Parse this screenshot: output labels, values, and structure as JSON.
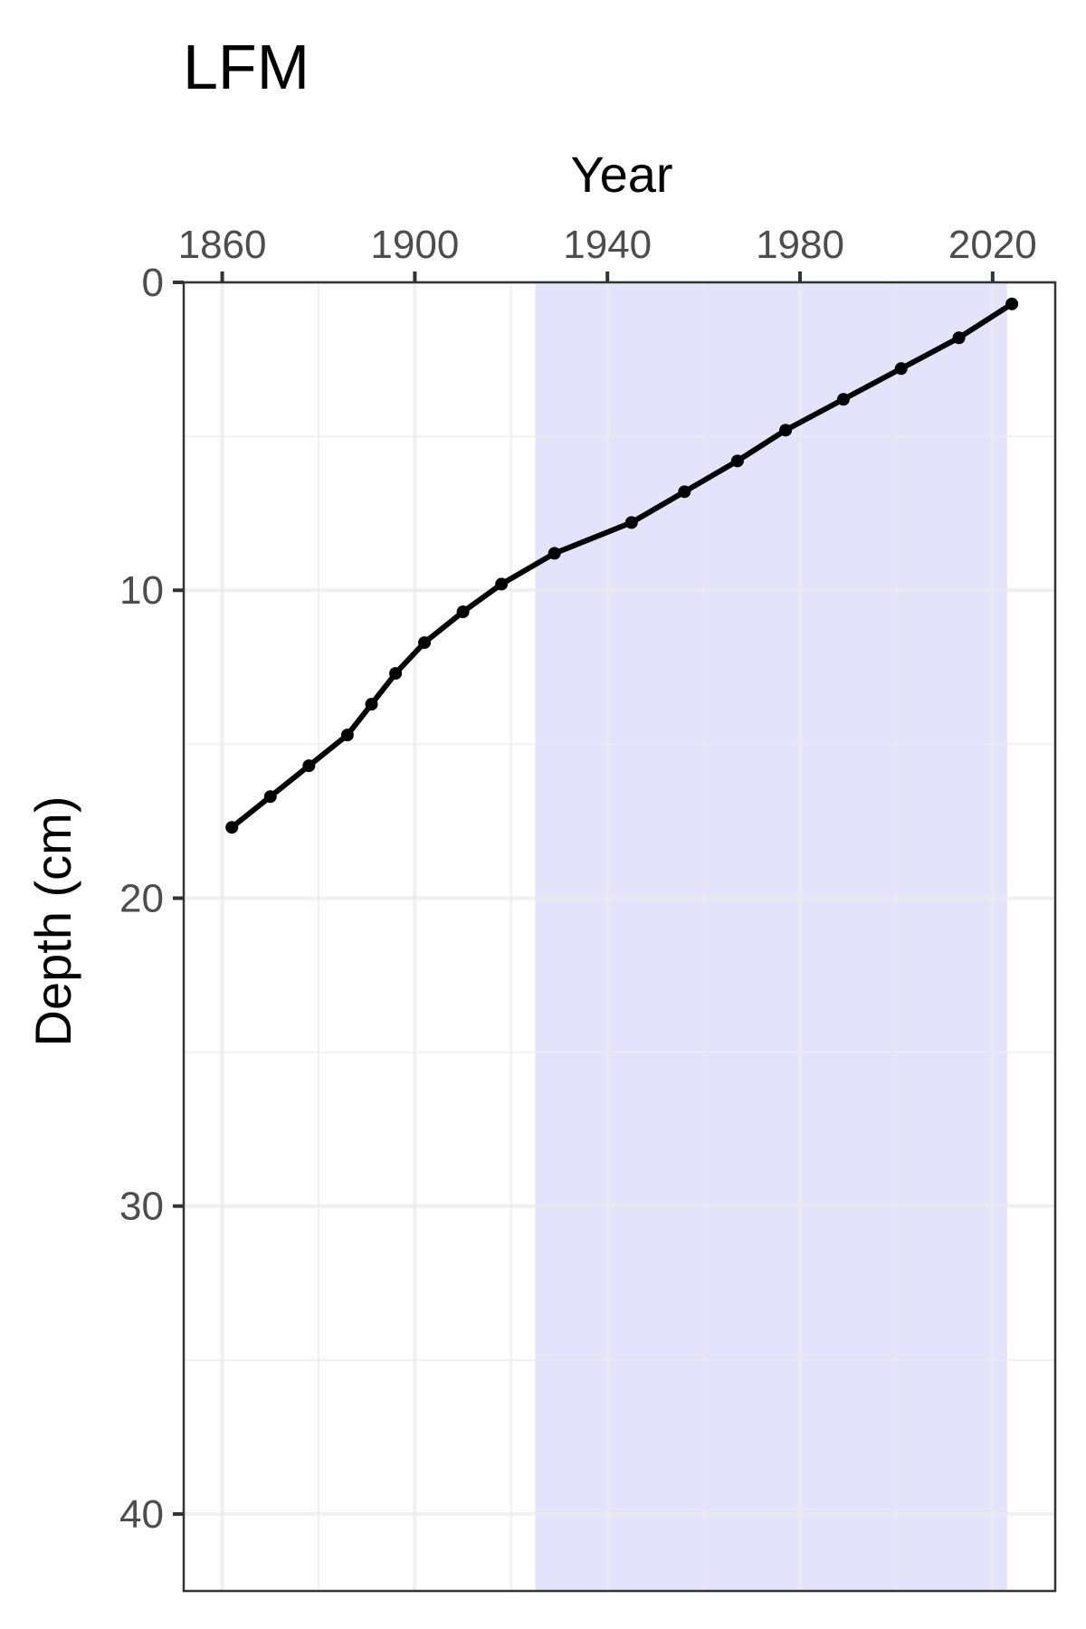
{
  "chart_data": {
    "type": "line",
    "title": "LFM",
    "xlabel": "Year",
    "ylabel": "Depth (cm)",
    "x_axis_position": "top",
    "y_reversed": true,
    "xlim": [
      1852,
      2033
    ],
    "ylim": [
      0,
      42.5
    ],
    "x_ticks": [
      1860,
      1900,
      1940,
      1980,
      2020
    ],
    "y_ticks": [
      0,
      10,
      20,
      30,
      40
    ],
    "x_minor": [
      1880,
      1920,
      1960,
      2000
    ],
    "y_minor": [
      5,
      15,
      25,
      35
    ],
    "grid": true,
    "shaded_region": {
      "x": [
        1925,
        2023
      ],
      "color": "#e3e3fc"
    },
    "line_color": "#000000",
    "series": [
      {
        "x": [
          1862,
          1870,
          1878,
          1886,
          1891,
          1896,
          1902,
          1910,
          1918,
          1929,
          1945,
          1956,
          1967,
          1977,
          1989,
          2001,
          2013,
          2024
        ],
        "y": [
          17.7,
          16.7,
          15.7,
          14.7,
          13.7,
          12.7,
          11.7,
          10.7,
          9.8,
          8.8,
          7.8,
          6.8,
          5.8,
          4.8,
          3.8,
          2.8,
          1.8,
          0.7
        ]
      }
    ]
  }
}
